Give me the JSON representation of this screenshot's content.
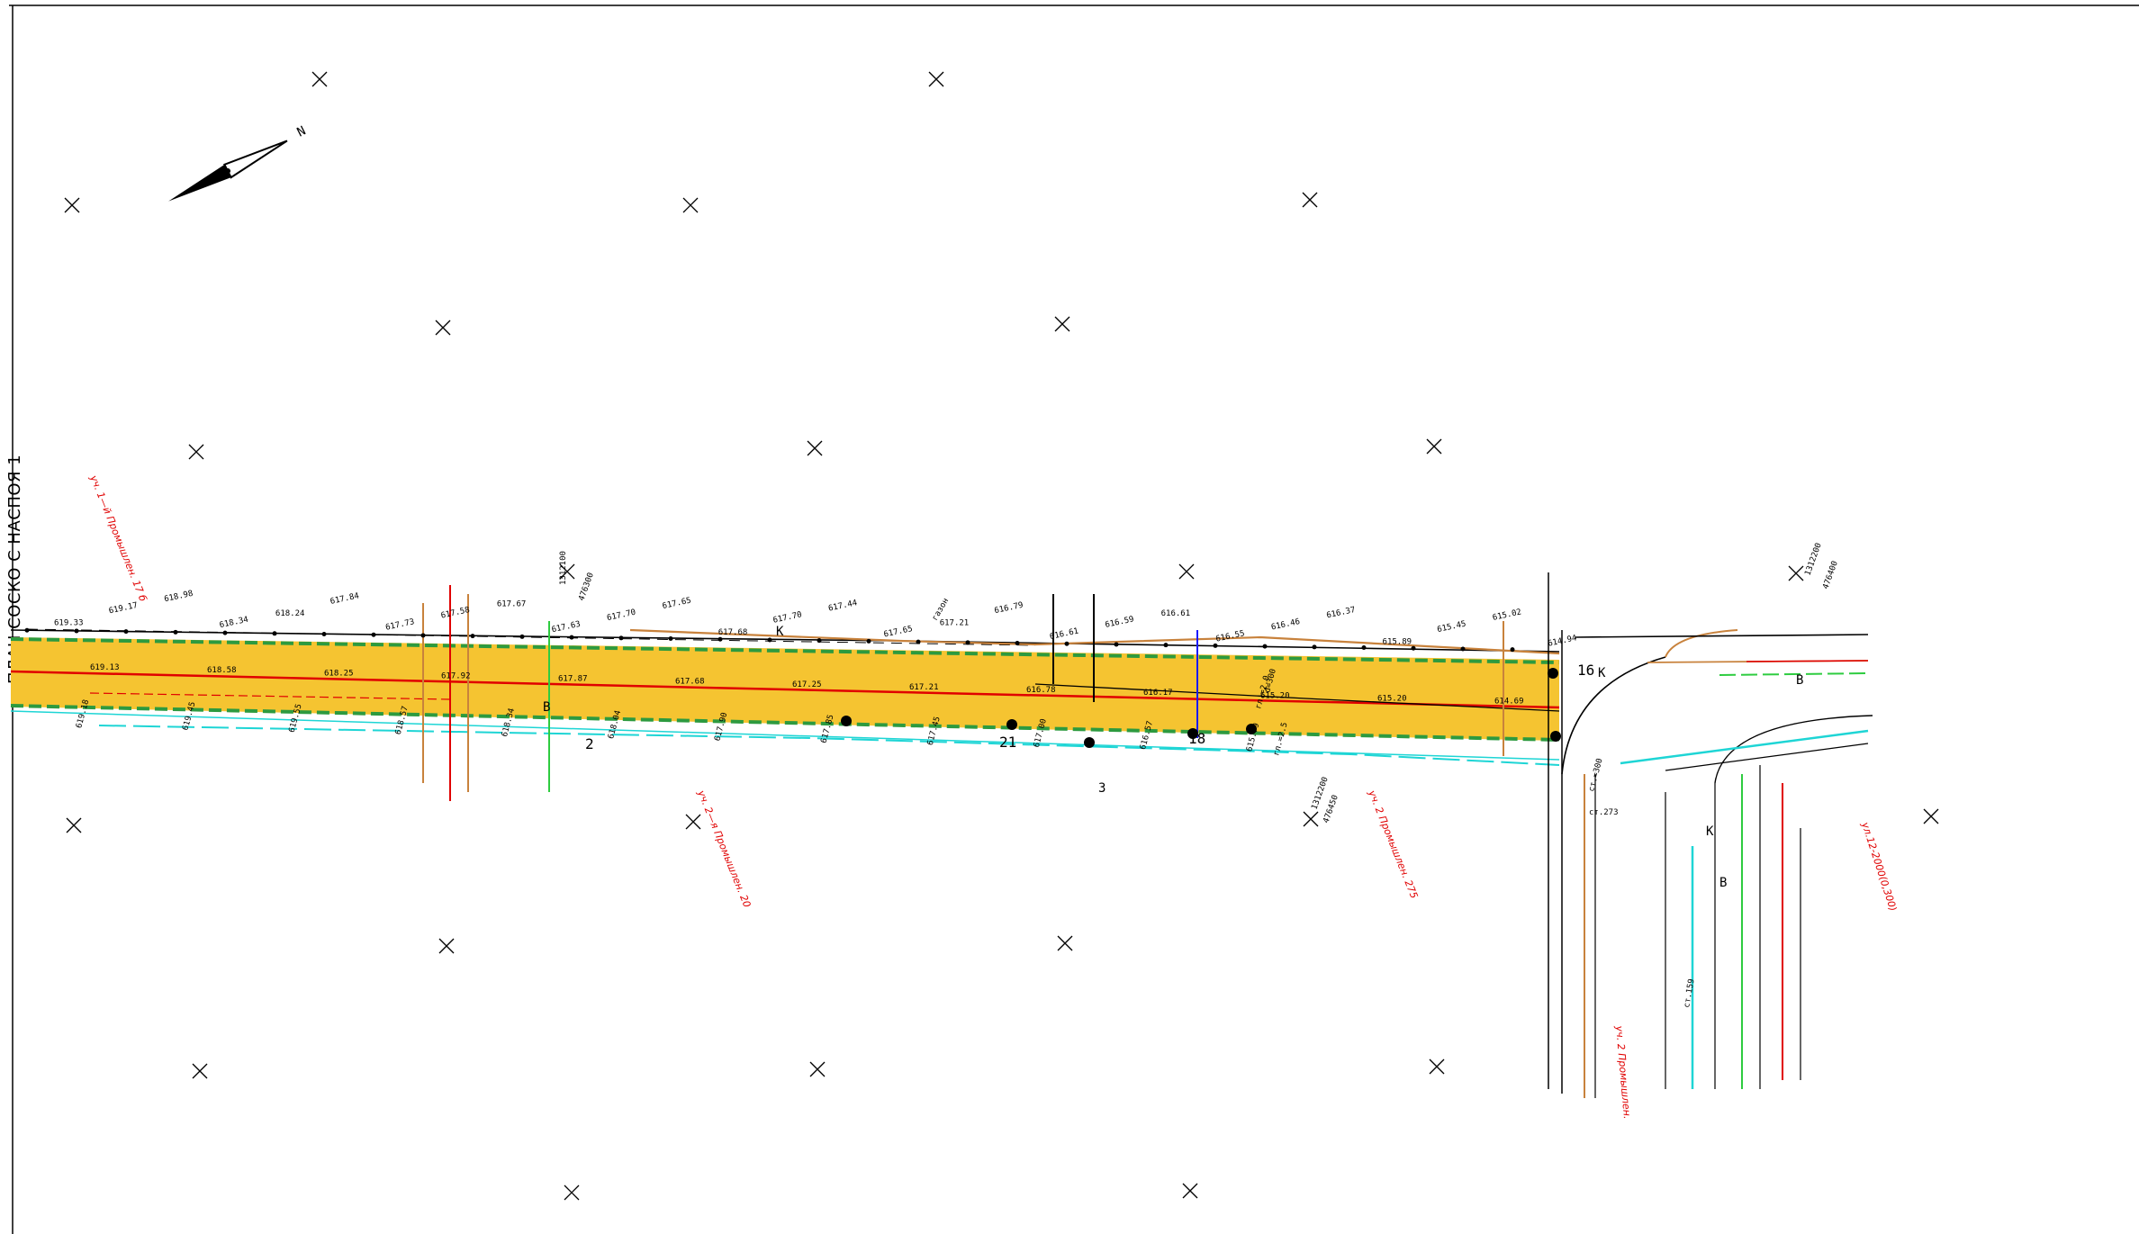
{
  "sheet": {
    "side_title": "ПЛАН СОСКО С НАСПОЯ 1"
  },
  "colors": {
    "road_fill": "#f5c431",
    "road_edge": "#2d9a3f",
    "centerline": "#e00000",
    "cyan_utility": "#1ed5d5",
    "orange_utility": "#c8823c",
    "green_utility": "#2ecc40",
    "linework": "#000000"
  },
  "north_arrow": {
    "label": "N"
  },
  "notes": {
    "red_1": "уч. 1—й Промышлен. 17 б",
    "red_2": "уч. 2—я Промышлен. 20",
    "red_3": "уч. 2 Промышлен. 275",
    "red_4": "ул.12-2000(0,300)",
    "red_5": "уч. 2 Промышлен."
  },
  "coords": {
    "c1": "1312100",
    "c1b": "476300",
    "c2": "1312200",
    "c2b": "476400",
    "c3": "1312200",
    "c3b": "476450"
  },
  "elevations_top": [
    "619.33",
    "619.17",
    "618.98",
    "618.34",
    "618.24",
    "617.84",
    "617.73",
    "617.58",
    "617.67",
    "617.63",
    "617.70",
    "617.65",
    "617.68",
    "617.70",
    "617.44",
    "617.65",
    "617.21",
    "616.79",
    "616.61",
    "616.59",
    "616.61",
    "616.55",
    "616.46",
    "616.37",
    "615.89",
    "615.45",
    "615.02",
    "614.94"
  ],
  "elevations_axis": [
    "619.13",
    "618.58",
    "618.25",
    "617.92",
    "617.87",
    "617.68",
    "617.25",
    "617.21",
    "616.78",
    "616.17",
    "615.20",
    "615.20",
    "614.69"
  ],
  "elevations_bottom": [
    "619.18",
    "619.45",
    "619.55",
    "618.57",
    "618.34",
    "618.04",
    "617.90",
    "617.85",
    "617.45",
    "617.00",
    "616.57",
    "615.79"
  ],
  "misc_labels": {
    "grass": "газон",
    "sec_k": "К",
    "sec_v": "В",
    "sec_z": "З",
    "pipe_1": "гл.=2.0",
    "pipe_2": "d=300",
    "pipe_3": "гл.=2.5",
    "n1": "2",
    "n2": "21",
    "n3": "18",
    "n4": "16",
    "cross_1": "ст.=300",
    "cross_2": "ст.273",
    "cross_3": "ст.159"
  }
}
